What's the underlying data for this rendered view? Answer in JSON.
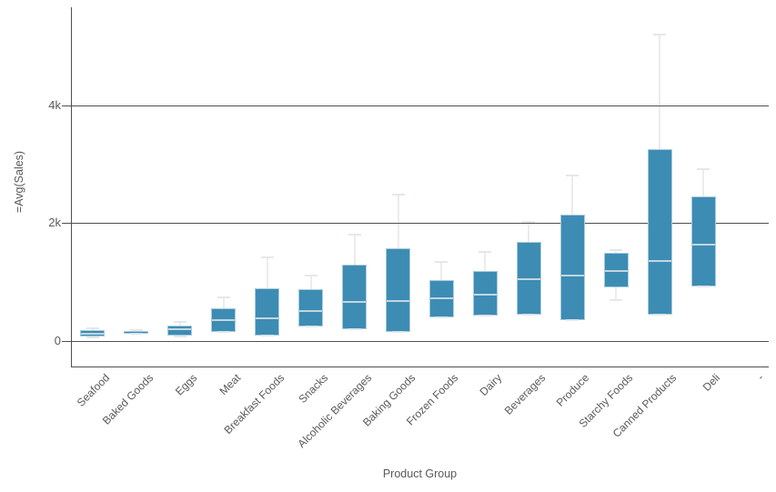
{
  "chart_data": {
    "type": "box",
    "title": "",
    "xlabel": "Product Group",
    "ylabel": "=Avg(Sales)",
    "ylim": [
      -430,
      5670
    ],
    "grid": true,
    "legend": "none",
    "y_ticks": [
      {
        "value": 0,
        "label": "0"
      },
      {
        "value": 2000,
        "label": "2k"
      },
      {
        "value": 4000,
        "label": "4k"
      }
    ],
    "categories": [
      "Seafood",
      "Baked Goods",
      "Eggs",
      "Meat",
      "Breakfast Foods",
      "Snacks",
      "Alcoholic Beverages",
      "Baking Goods",
      "Frozen Foods",
      "Dairy",
      "Beverages",
      "Produce",
      "Starchy Foods",
      "Canned Products",
      "Deli",
      "-"
    ],
    "series": [
      {
        "name": "Seafood",
        "low": 60,
        "q1": 75,
        "median": 140,
        "q3": 185,
        "high": 215
      },
      {
        "name": "Baked Goods",
        "low": 120,
        "q1": 130,
        "median": 155,
        "q3": 170,
        "high": 180
      },
      {
        "name": "Eggs",
        "low": 75,
        "q1": 90,
        "median": 215,
        "q3": 265,
        "high": 325
      },
      {
        "name": "Meat",
        "low": 150,
        "q1": 155,
        "median": 370,
        "q3": 555,
        "high": 745
      },
      {
        "name": "Breakfast Foods",
        "low": 90,
        "q1": 95,
        "median": 400,
        "q3": 895,
        "high": 1425
      },
      {
        "name": "Snacks",
        "low": 245,
        "q1": 250,
        "median": 525,
        "q3": 880,
        "high": 1115
      },
      {
        "name": "Alcoholic Beverages",
        "low": 195,
        "q1": 200,
        "median": 680,
        "q3": 1300,
        "high": 1810
      },
      {
        "name": "Baking Goods",
        "low": 150,
        "q1": 155,
        "median": 695,
        "q3": 1575,
        "high": 2490
      },
      {
        "name": "Frozen Foods",
        "low": 395,
        "q1": 400,
        "median": 740,
        "q3": 1035,
        "high": 1345
      },
      {
        "name": "Dairy",
        "low": 425,
        "q1": 430,
        "median": 805,
        "q3": 1190,
        "high": 1515
      },
      {
        "name": "Beverages",
        "low": 445,
        "q1": 450,
        "median": 1065,
        "q3": 1690,
        "high": 2020
      },
      {
        "name": "Produce",
        "low": 350,
        "q1": 355,
        "median": 1130,
        "q3": 2150,
        "high": 2815
      },
      {
        "name": "Starchy Foods",
        "low": 695,
        "q1": 910,
        "median": 1205,
        "q3": 1500,
        "high": 1545
      },
      {
        "name": "Canned Products",
        "low": 445,
        "q1": 450,
        "median": 1375,
        "q3": 3250,
        "high": 5200
      },
      {
        "name": "Deli",
        "low": 925,
        "q1": 930,
        "median": 1655,
        "q3": 2460,
        "high": 2925
      },
      {
        "name": "-",
        "low": null,
        "q1": null,
        "median": null,
        "q3": null,
        "high": null
      }
    ],
    "colors": {
      "box_fill": "#3d8cb4",
      "box_border": "#a6cbdd",
      "median": "#c2d6df",
      "whisker": "#ececec",
      "whisker_cap": "#e0e6e9",
      "axis": "#4f4f4f",
      "grid": "#4f4f4f",
      "text": "#595959",
      "background": "#ffffff"
    }
  }
}
